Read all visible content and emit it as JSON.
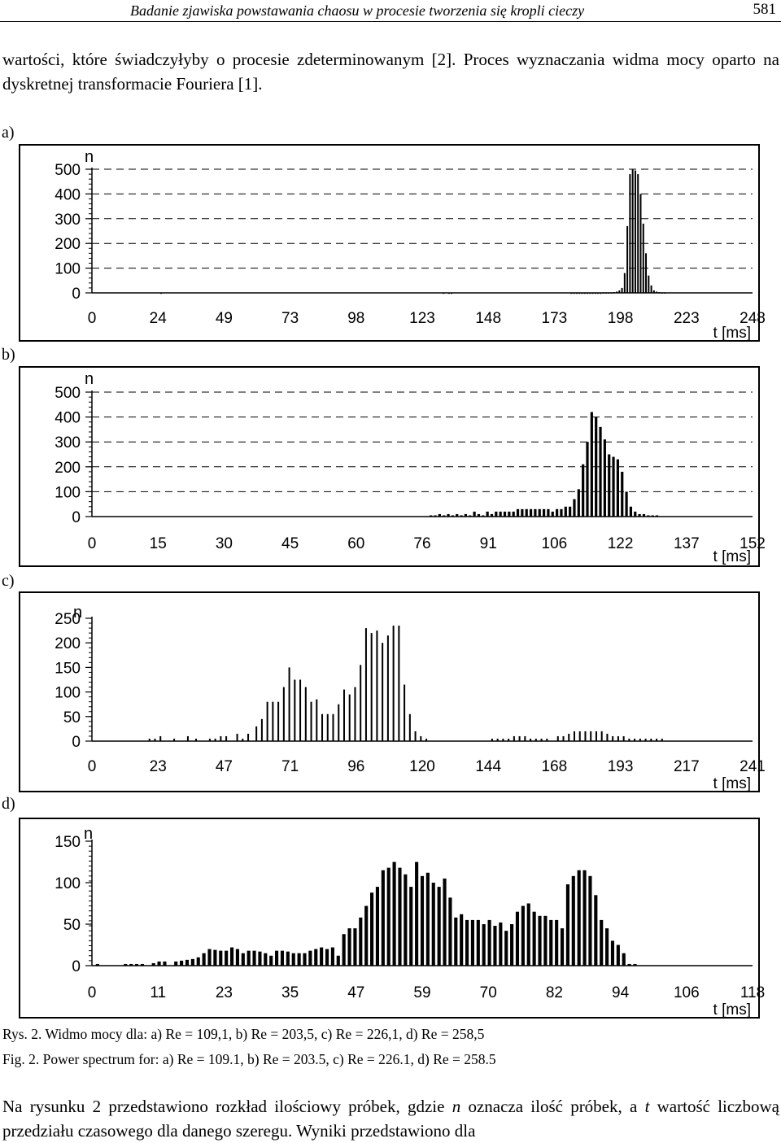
{
  "header": {
    "running_title": "Badanie zjawiska powstawania chaosu w procesie tworzenia się kropli cieczy",
    "page_number": "581"
  },
  "intro_text": "wartości, które świadczyłyby o procesie zdeterminowanym [2]. Proces wyznaczania widma mocy oparto na dyskretnej transformacie Fouriera [1].",
  "chart_data": [
    {
      "panel": "a)",
      "type": "bar",
      "ylabel": "n",
      "xlabel": "t [ms]",
      "yticks": [
        0,
        100,
        200,
        300,
        400,
        500
      ],
      "ylim": [
        0,
        500
      ],
      "xticks": [
        "0",
        "24",
        "49",
        "73",
        "98",
        "123",
        "148",
        "173",
        "198",
        "223",
        "248"
      ],
      "xlim": [
        0,
        248
      ],
      "grid": "dashed",
      "bars": [
        [
          26,
          1
        ],
        [
          132,
          1
        ],
        [
          134,
          1
        ],
        [
          135,
          1
        ],
        [
          180,
          1
        ],
        [
          181,
          1
        ],
        [
          182,
          1
        ],
        [
          183,
          1
        ],
        [
          184,
          1
        ],
        [
          185,
          1
        ],
        [
          186,
          1
        ],
        [
          187,
          1
        ],
        [
          188,
          1
        ],
        [
          189,
          1
        ],
        [
          190,
          1
        ],
        [
          191,
          1
        ],
        [
          192,
          2
        ],
        [
          193,
          2
        ],
        [
          194,
          2
        ],
        [
          195,
          2
        ],
        [
          196,
          3
        ],
        [
          197,
          5
        ],
        [
          198,
          10
        ],
        [
          199,
          20
        ],
        [
          200,
          80
        ],
        [
          201,
          270
        ],
        [
          202,
          480
        ],
        [
          203,
          500
        ],
        [
          204,
          495
        ],
        [
          205,
          480
        ],
        [
          206,
          400
        ],
        [
          207,
          280
        ],
        [
          208,
          160
        ],
        [
          209,
          70
        ],
        [
          210,
          30
        ],
        [
          211,
          10
        ],
        [
          212,
          5
        ],
        [
          213,
          3
        ],
        [
          214,
          2
        ],
        [
          215,
          2
        ]
      ]
    },
    {
      "panel": "b)",
      "type": "bar",
      "ylabel": "n",
      "xlabel": "t [ms]",
      "yticks": [
        0,
        100,
        200,
        300,
        400,
        500
      ],
      "ylim": [
        0,
        500
      ],
      "xticks": [
        "0",
        "15",
        "30",
        "45",
        "60",
        "76",
        "91",
        "106",
        "122",
        "137",
        "152"
      ],
      "xlim": [
        0,
        152
      ],
      "grid": "dashed",
      "bars": [
        [
          78,
          5
        ],
        [
          79,
          5
        ],
        [
          80,
          10
        ],
        [
          81,
          5
        ],
        [
          82,
          10
        ],
        [
          83,
          5
        ],
        [
          84,
          10
        ],
        [
          85,
          5
        ],
        [
          86,
          10
        ],
        [
          87,
          5
        ],
        [
          88,
          20
        ],
        [
          89,
          10
        ],
        [
          90,
          5
        ],
        [
          91,
          20
        ],
        [
          92,
          10
        ],
        [
          93,
          20
        ],
        [
          94,
          20
        ],
        [
          95,
          20
        ],
        [
          96,
          20
        ],
        [
          97,
          20
        ],
        [
          98,
          30
        ],
        [
          99,
          30
        ],
        [
          100,
          30
        ],
        [
          101,
          30
        ],
        [
          102,
          30
        ],
        [
          103,
          30
        ],
        [
          104,
          30
        ],
        [
          105,
          30
        ],
        [
          106,
          20
        ],
        [
          107,
          30
        ],
        [
          108,
          30
        ],
        [
          109,
          40
        ],
        [
          110,
          40
        ],
        [
          111,
          70
        ],
        [
          112,
          110
        ],
        [
          113,
          210
        ],
        [
          114,
          300
        ],
        [
          115,
          420
        ],
        [
          116,
          400
        ],
        [
          117,
          360
        ],
        [
          118,
          310
        ],
        [
          119,
          250
        ],
        [
          120,
          240
        ],
        [
          121,
          230
        ],
        [
          122,
          180
        ],
        [
          123,
          100
        ],
        [
          124,
          40
        ],
        [
          125,
          20
        ],
        [
          126,
          10
        ],
        [
          127,
          10
        ],
        [
          128,
          5
        ],
        [
          129,
          5
        ],
        [
          130,
          5
        ]
      ]
    },
    {
      "panel": "c)",
      "type": "bar",
      "ylabel": "n",
      "xlabel": "t [ms]",
      "yticks": [
        0,
        50,
        100,
        150,
        200,
        250
      ],
      "ylim": [
        0,
        250
      ],
      "xticks": [
        "0",
        "23",
        "47",
        "71",
        "96",
        "120",
        "144",
        "168",
        "193",
        "217",
        "241"
      ],
      "xlim": [
        0,
        241
      ],
      "grid": "none",
      "bars": [
        [
          21,
          5
        ],
        [
          23,
          5
        ],
        [
          25,
          10
        ],
        [
          30,
          5
        ],
        [
          35,
          10
        ],
        [
          38,
          5
        ],
        [
          43,
          5
        ],
        [
          45,
          5
        ],
        [
          47,
          10
        ],
        [
          49,
          10
        ],
        [
          53,
          15
        ],
        [
          55,
          5
        ],
        [
          57,
          15
        ],
        [
          60,
          30
        ],
        [
          62,
          45
        ],
        [
          64,
          80
        ],
        [
          66,
          80
        ],
        [
          68,
          80
        ],
        [
          70,
          110
        ],
        [
          72,
          150
        ],
        [
          74,
          125
        ],
        [
          76,
          125
        ],
        [
          78,
          110
        ],
        [
          80,
          80
        ],
        [
          82,
          85
        ],
        [
          84,
          55
        ],
        [
          86,
          55
        ],
        [
          88,
          55
        ],
        [
          90,
          75
        ],
        [
          92,
          105
        ],
        [
          94,
          95
        ],
        [
          96,
          110
        ],
        [
          98,
          155
        ],
        [
          100,
          230
        ],
        [
          102,
          220
        ],
        [
          104,
          225
        ],
        [
          106,
          200
        ],
        [
          108,
          215
        ],
        [
          110,
          235
        ],
        [
          112,
          235
        ],
        [
          114,
          115
        ],
        [
          116,
          55
        ],
        [
          118,
          20
        ],
        [
          120,
          10
        ],
        [
          122,
          5
        ],
        [
          146,
          5
        ],
        [
          148,
          5
        ],
        [
          150,
          5
        ],
        [
          152,
          5
        ],
        [
          154,
          10
        ],
        [
          156,
          10
        ],
        [
          158,
          10
        ],
        [
          160,
          5
        ],
        [
          162,
          5
        ],
        [
          164,
          5
        ],
        [
          166,
          5
        ],
        [
          170,
          10
        ],
        [
          172,
          10
        ],
        [
          174,
          15
        ],
        [
          176,
          20
        ],
        [
          178,
          20
        ],
        [
          180,
          20
        ],
        [
          182,
          20
        ],
        [
          184,
          20
        ],
        [
          186,
          20
        ],
        [
          188,
          15
        ],
        [
          190,
          10
        ],
        [
          192,
          10
        ],
        [
          194,
          10
        ],
        [
          196,
          5
        ],
        [
          198,
          5
        ],
        [
          200,
          5
        ],
        [
          202,
          5
        ],
        [
          204,
          5
        ],
        [
          206,
          5
        ],
        [
          208,
          5
        ]
      ]
    },
    {
      "panel": "d)",
      "type": "bar",
      "ylabel": "n",
      "xlabel": "t [ms]",
      "yticks": [
        0,
        50,
        100,
        150
      ],
      "ylim": [
        0,
        150
      ],
      "xticks": [
        "0",
        "11",
        "23",
        "35",
        "47",
        "59",
        "70",
        "82",
        "94",
        "106",
        "118"
      ],
      "xlim": [
        0,
        118
      ],
      "grid": "none",
      "bars": [
        [
          1,
          2
        ],
        [
          6,
          2
        ],
        [
          7,
          2
        ],
        [
          8,
          2
        ],
        [
          9,
          2
        ],
        [
          11,
          3
        ],
        [
          12,
          5
        ],
        [
          13,
          5
        ],
        [
          15,
          5
        ],
        [
          16,
          6
        ],
        [
          17,
          7
        ],
        [
          18,
          8
        ],
        [
          19,
          10
        ],
        [
          20,
          15
        ],
        [
          21,
          20
        ],
        [
          22,
          19
        ],
        [
          23,
          18
        ],
        [
          24,
          18
        ],
        [
          25,
          22
        ],
        [
          26,
          20
        ],
        [
          27,
          15
        ],
        [
          28,
          18
        ],
        [
          29,
          18
        ],
        [
          30,
          17
        ],
        [
          31,
          15
        ],
        [
          32,
          12
        ],
        [
          33,
          18
        ],
        [
          34,
          18
        ],
        [
          35,
          17
        ],
        [
          36,
          15
        ],
        [
          37,
          15
        ],
        [
          38,
          15
        ],
        [
          39,
          18
        ],
        [
          40,
          20
        ],
        [
          41,
          22
        ],
        [
          42,
          20
        ],
        [
          43,
          22
        ],
        [
          44,
          12
        ],
        [
          45,
          38
        ],
        [
          46,
          45
        ],
        [
          47,
          45
        ],
        [
          48,
          58
        ],
        [
          49,
          72
        ],
        [
          50,
          88
        ],
        [
          51,
          95
        ],
        [
          52,
          115
        ],
        [
          53,
          118
        ],
        [
          54,
          125
        ],
        [
          55,
          118
        ],
        [
          56,
          110
        ],
        [
          57,
          95
        ],
        [
          58,
          125
        ],
        [
          59,
          108
        ],
        [
          60,
          112
        ],
        [
          61,
          100
        ],
        [
          62,
          95
        ],
        [
          63,
          105
        ],
        [
          64,
          82
        ],
        [
          65,
          58
        ],
        [
          66,
          62
        ],
        [
          67,
          55
        ],
        [
          68,
          55
        ],
        [
          69,
          55
        ],
        [
          70,
          50
        ],
        [
          71,
          55
        ],
        [
          72,
          48
        ],
        [
          73,
          52
        ],
        [
          74,
          42
        ],
        [
          75,
          50
        ],
        [
          76,
          65
        ],
        [
          77,
          72
        ],
        [
          78,
          75
        ],
        [
          79,
          65
        ],
        [
          80,
          60
        ],
        [
          81,
          60
        ],
        [
          82,
          55
        ],
        [
          83,
          55
        ],
        [
          84,
          45
        ],
        [
          85,
          98
        ],
        [
          86,
          108
        ],
        [
          87,
          115
        ],
        [
          88,
          115
        ],
        [
          89,
          108
        ],
        [
          90,
          85
        ],
        [
          91,
          55
        ],
        [
          92,
          45
        ],
        [
          93,
          30
        ],
        [
          94,
          25
        ],
        [
          95,
          15
        ],
        [
          96,
          2
        ],
        [
          97,
          2
        ]
      ]
    }
  ],
  "captions": {
    "pl": "Rys. 2. Widmo mocy dla: a) Re = 109,1, b) Re = 203,5, c) Re = 226,1, d) Re = 258,5",
    "en": "Fig. 2.  Power spectrum for: a) Re = 109.1, b) Re = 203.5, c) Re = 226.1, d) Re = 258.5"
  },
  "closing_text": {
    "part1": "Na rysunku 2 przedstawiono rozkład ilościowy próbek, gdzie ",
    "n_symbol": "n",
    "part2": " oznacza ilość próbek, a ",
    "t_symbol": "t",
    "part3": " wartość liczbową przedziału czasowego dla danego szeregu. Wyniki przedstawiono dla"
  }
}
